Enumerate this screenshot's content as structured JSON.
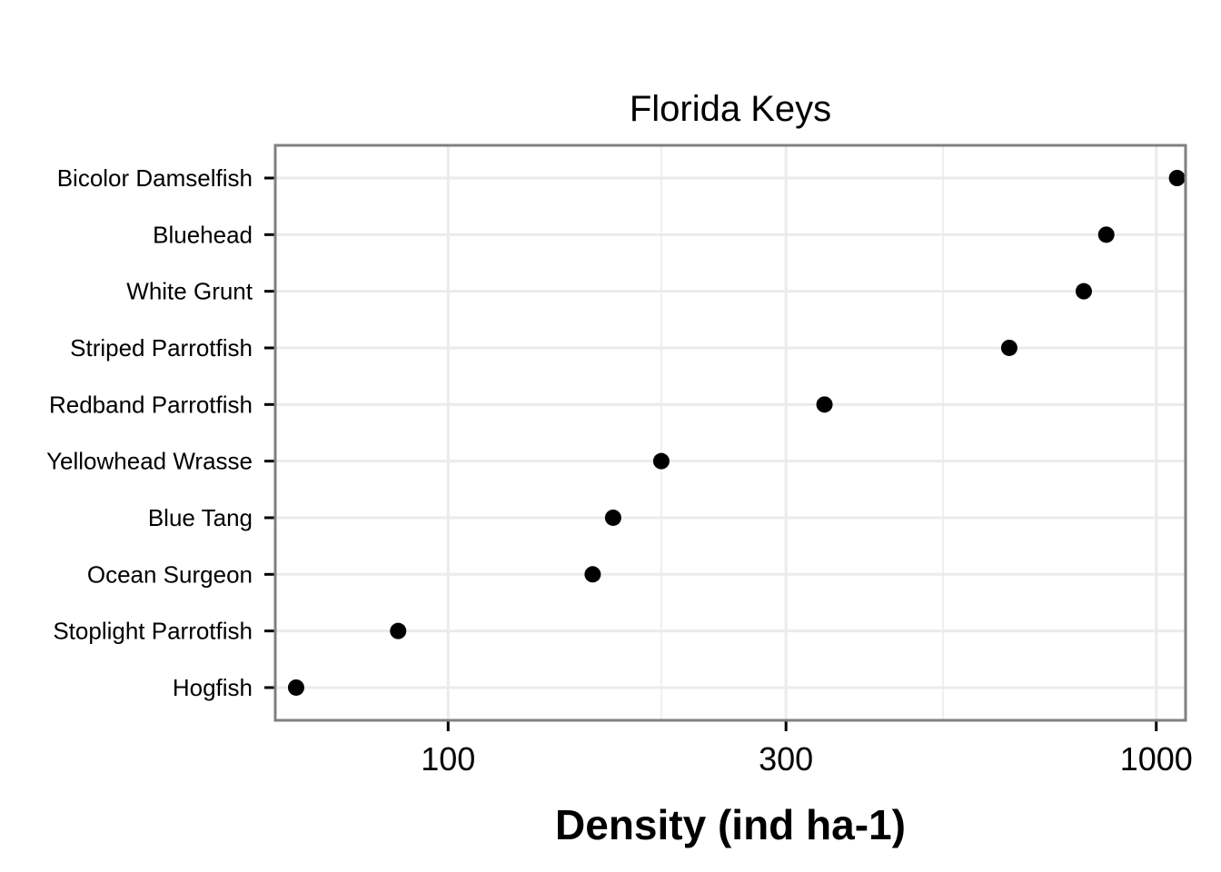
{
  "chart_data": {
    "type": "scatter",
    "title": "Florida Keys",
    "xlabel": "Density (ind ha-1)",
    "ylabel": "",
    "x_scale": "log10",
    "xlim": [
      57,
      1100
    ],
    "x_ticks": [
      100,
      300,
      1000
    ],
    "x_tick_labels": [
      "100",
      "300",
      "1000"
    ],
    "x_minor_gridlines": [
      200,
      500
    ],
    "grid": true,
    "legend": "none",
    "categories": [
      "Bicolor Damselfish",
      "Bluehead",
      "White Grunt",
      "Striped Parrotfish",
      "Redband Parrotfish",
      "Yellowhead Wrasse",
      "Blue Tang",
      "Ocean Surgeon",
      "Stoplight Parrotfish",
      "Hogfish"
    ],
    "values": [
      1070,
      850,
      790,
      620,
      340,
      200,
      171,
      160,
      85,
      61
    ],
    "colors": {
      "point": "#000000",
      "panel_border": "#808080",
      "grid": "#ebebeb"
    }
  }
}
